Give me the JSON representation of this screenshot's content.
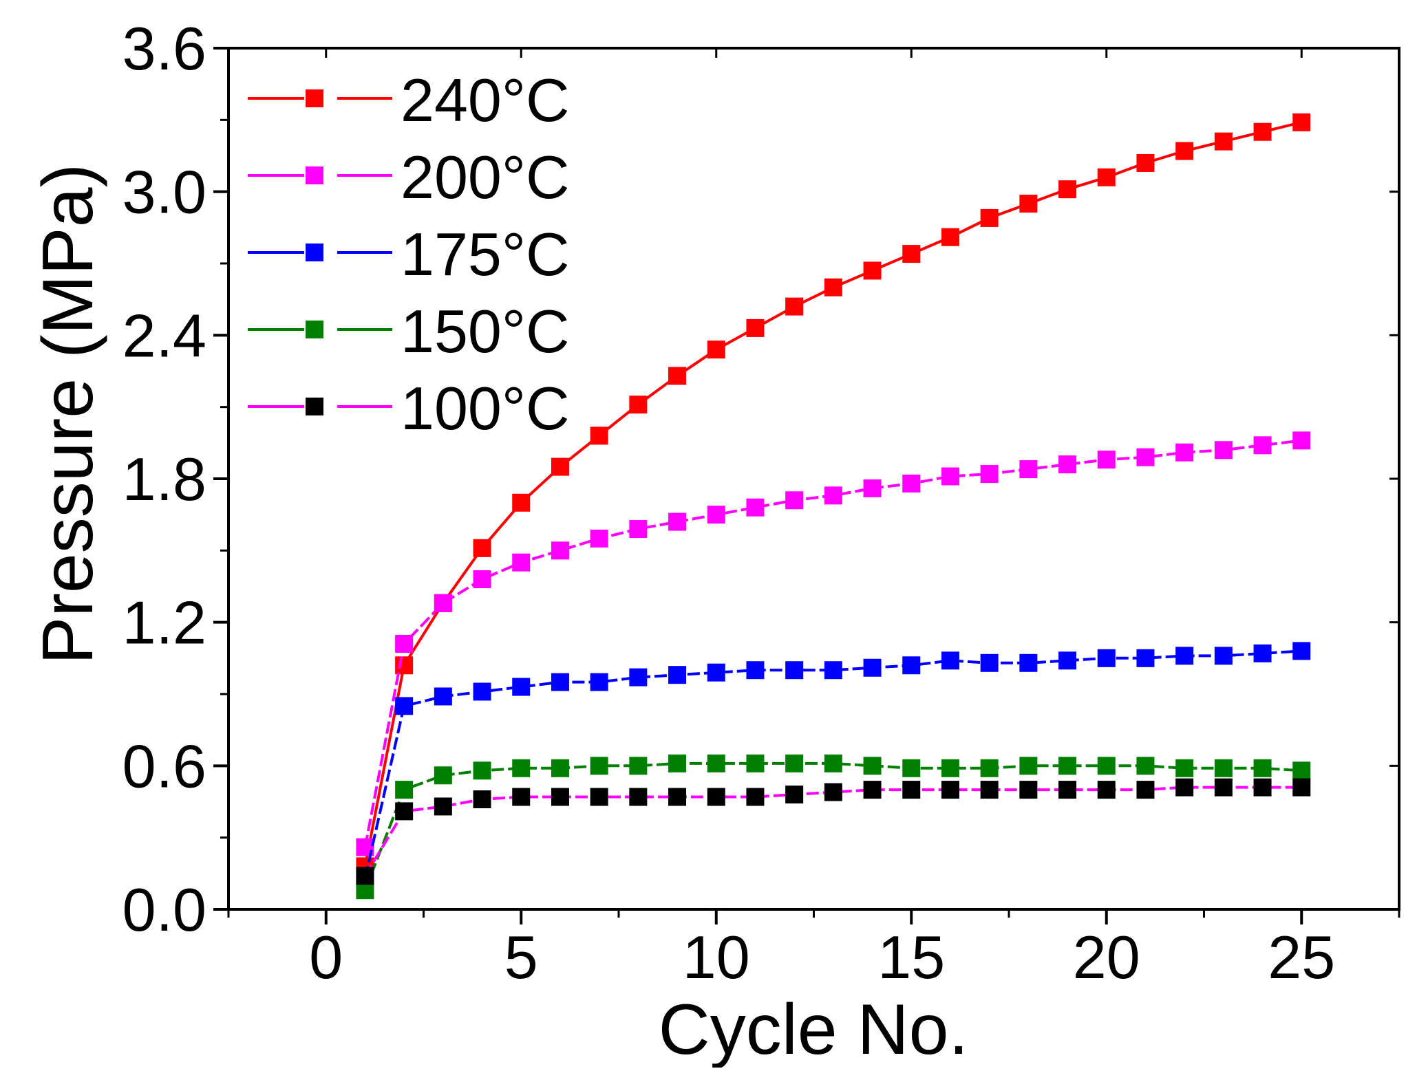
{
  "chart_data": {
    "type": "line",
    "title": "",
    "xlabel": "Cycle No.",
    "ylabel": "Pressure (MPa)",
    "xlim": [
      -2.5,
      27.5
    ],
    "ylim": [
      0.0,
      3.6
    ],
    "x_ticks": [
      0,
      5,
      10,
      15,
      20,
      25
    ],
    "x_tick_labels": [
      "0",
      "5",
      "10",
      "15",
      "20",
      "25"
    ],
    "y_ticks": [
      0.0,
      0.6,
      1.2,
      1.8,
      2.4,
      3.0,
      3.6
    ],
    "y_tick_labels": [
      "0.0",
      "0.6",
      "1.2",
      "1.8",
      "2.4",
      "3.0",
      "3.6"
    ],
    "grid": false,
    "legend_position": "top-left",
    "marker": "square",
    "x": [
      1,
      2,
      3,
      4,
      5,
      6,
      7,
      8,
      9,
      10,
      11,
      12,
      13,
      14,
      15,
      16,
      17,
      18,
      19,
      20,
      21,
      22,
      23,
      24,
      25
    ],
    "series": [
      {
        "name": "240°C",
        "color": "#ff0000",
        "line_color": "#ff0000",
        "values": [
          0.18,
          1.02,
          1.28,
          1.51,
          1.7,
          1.85,
          1.98,
          2.11,
          2.23,
          2.34,
          2.43,
          2.52,
          2.6,
          2.67,
          2.74,
          2.81,
          2.89,
          2.95,
          3.01,
          3.06,
          3.12,
          3.17,
          3.21,
          3.25,
          3.29
        ]
      },
      {
        "name": "200°C",
        "color": "#ff00ff",
        "line_color": "#ff00ff",
        "values": [
          0.26,
          1.11,
          1.28,
          1.38,
          1.45,
          1.5,
          1.55,
          1.59,
          1.62,
          1.65,
          1.68,
          1.71,
          1.73,
          1.76,
          1.78,
          1.81,
          1.82,
          1.84,
          1.86,
          1.88,
          1.89,
          1.91,
          1.92,
          1.94,
          1.96
        ]
      },
      {
        "name": "175°C",
        "color": "#0000ff",
        "line_color": "#0000ff",
        "values": [
          0.13,
          0.85,
          0.89,
          0.91,
          0.93,
          0.95,
          0.95,
          0.97,
          0.98,
          0.99,
          1.0,
          1.0,
          1.0,
          1.01,
          1.02,
          1.04,
          1.03,
          1.03,
          1.04,
          1.05,
          1.05,
          1.06,
          1.06,
          1.07,
          1.08
        ]
      },
      {
        "name": "150°C",
        "color": "#008000",
        "line_color": "#008000",
        "values": [
          0.08,
          0.5,
          0.56,
          0.58,
          0.59,
          0.59,
          0.6,
          0.6,
          0.61,
          0.61,
          0.61,
          0.61,
          0.61,
          0.6,
          0.59,
          0.59,
          0.59,
          0.6,
          0.6,
          0.6,
          0.6,
          0.59,
          0.59,
          0.59,
          0.58
        ]
      },
      {
        "name": "100°C",
        "color": "#000000",
        "line_color": "#ff00ff",
        "values": [
          0.14,
          0.41,
          0.43,
          0.46,
          0.47,
          0.47,
          0.47,
          0.47,
          0.47,
          0.47,
          0.47,
          0.48,
          0.49,
          0.5,
          0.5,
          0.5,
          0.5,
          0.5,
          0.5,
          0.5,
          0.5,
          0.51,
          0.51,
          0.51,
          0.51
        ]
      }
    ]
  }
}
